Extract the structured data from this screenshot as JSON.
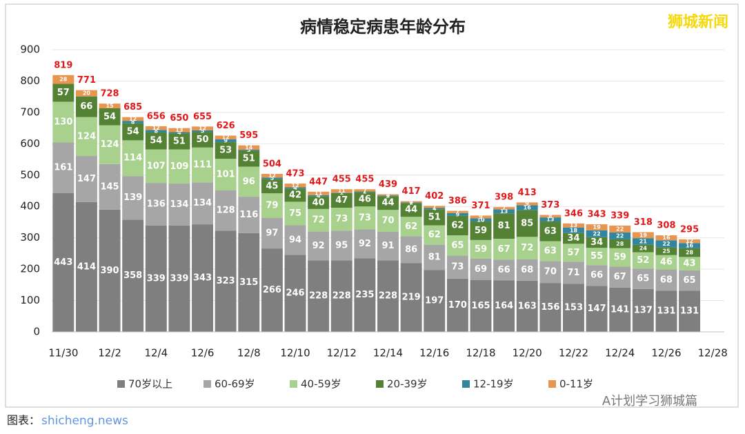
{
  "chart_data": {
    "type": "stacked-bar",
    "title": "病情稳定病患年龄分布",
    "categories": [
      "11/30",
      null,
      "12/2",
      null,
      "12/4",
      null,
      "12/6",
      null,
      "12/8",
      null,
      "12/10",
      null,
      "12/12",
      null,
      "12/14",
      null,
      "12/16",
      null,
      "12/18",
      null,
      "12/20",
      null,
      "12/22",
      null,
      "12/24",
      null,
      "12/26",
      null,
      "12/28"
    ],
    "series": [
      {
        "name": "70岁以上",
        "color": "#7f7f7f",
        "values": [
          443,
          414,
          390,
          358,
          339,
          339,
          343,
          323,
          315,
          266,
          246,
          228,
          228,
          235,
          228,
          219,
          197,
          170,
          165,
          164,
          163,
          156,
          153,
          147,
          141,
          137,
          131,
          131,
          null
        ]
      },
      {
        "name": "60-69岁",
        "color": "#a6a6a6",
        "values": [
          161,
          147,
          145,
          139,
          136,
          134,
          134,
          128,
          116,
          97,
          94,
          92,
          95,
          92,
          91,
          86,
          81,
          73,
          69,
          66,
          68,
          70,
          71,
          66,
          67,
          65,
          68,
          65,
          null
        ]
      },
      {
        "name": "40-59岁",
        "color": "#a9d18e",
        "values": [
          130,
          124,
          124,
          114,
          107,
          109,
          111,
          101,
          96,
          79,
          75,
          72,
          73,
          73,
          70,
          62,
          62,
          65,
          59,
          67,
          72,
          63,
          57,
          55,
          59,
          52,
          46,
          43,
          null
        ]
      },
      {
        "name": "20-39岁",
        "color": "#548235",
        "values": [
          57,
          66,
          54,
          54,
          54,
          51,
          50,
          53,
          51,
          45,
          42,
          40,
          47,
          46,
          44,
          44,
          51,
          62,
          59,
          81,
          85,
          63,
          34,
          34,
          28,
          24,
          25,
          28,
          null
        ]
      },
      {
        "name": "12-19岁",
        "color": "#31859c",
        "values": [
          0,
          0,
          0,
          8,
          8,
          4,
          5,
          9,
          3,
          5,
          4,
          4,
          1,
          2,
          2,
          2,
          4,
          9,
          10,
          13,
          16,
          13,
          18,
          22,
          22,
          21,
          22,
          16,
          null
        ]
      },
      {
        "name": "0-11岁",
        "color": "#e8954f",
        "values": [
          28,
          20,
          15,
          12,
          12,
          13,
          12,
          12,
          14,
          12,
          12,
          11,
          11,
          7,
          4,
          4,
          7,
          7,
          9,
          7,
          9,
          8,
          13,
          19,
          22,
          19,
          16,
          12,
          null
        ]
      }
    ],
    "totals": [
      819,
      771,
      728,
      685,
      656,
      650,
      655,
      626,
      595,
      504,
      473,
      447,
      455,
      455,
      439,
      417,
      402,
      386,
      371,
      398,
      413,
      373,
      346,
      343,
      339,
      318,
      308,
      295,
      null
    ],
    "ylim": [
      0,
      900
    ],
    "yticks": [
      0,
      100,
      200,
      300,
      400,
      500,
      600,
      700,
      800,
      900
    ],
    "grid": true
  },
  "watermark": "狮城新闻",
  "source": "图表：",
  "site": "shicheng.news",
  "account": "A计划学习狮城篇"
}
